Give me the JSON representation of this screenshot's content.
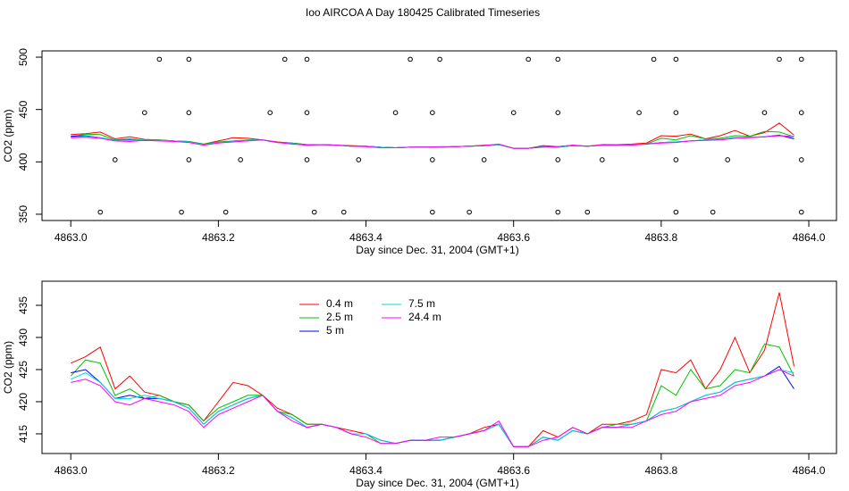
{
  "chart_data": [
    {
      "type": "scatter",
      "title": "Ioo AIRCOA A  Day 180425  Calibrated Timeseries",
      "x_label": "Day since Dec. 31, 2004 (GMT+1)",
      "y_label": "CO2 (ppm)",
      "x": [
        4863.12,
        4863.16,
        4863.29,
        4863.32,
        4863.46,
        4863.5,
        4863.62,
        4863.66,
        4863.79,
        4863.82,
        4863.96,
        4863.99,
        4863.1,
        4863.16,
        4863.27,
        4863.32,
        4863.44,
        4863.49,
        4863.6,
        4863.66,
        4863.77,
        4863.82,
        4863.94,
        4863.99,
        4863.06,
        4863.16,
        4863.23,
        4863.32,
        4863.39,
        4863.49,
        4863.56,
        4863.66,
        4863.72,
        4863.82,
        4863.89,
        4863.99,
        4863.04,
        4863.15,
        4863.21,
        4863.33,
        4863.37,
        4863.49,
        4863.54,
        4863.66,
        4863.7,
        4863.82,
        4863.87,
        4863.99
      ],
      "values": [
        498,
        498,
        498,
        498,
        498,
        498,
        498,
        498,
        498,
        498,
        498,
        498,
        447,
        447,
        447,
        447,
        447,
        447,
        447,
        447,
        447,
        447,
        447,
        447,
        402,
        402,
        402,
        402,
        402,
        402,
        402,
        402,
        402,
        402,
        402,
        402,
        352,
        352,
        352,
        352,
        352,
        352,
        352,
        352,
        352,
        352,
        352,
        352
      ],
      "color": "#000000",
      "xlim": [
        4862.961,
        4864.0375
      ],
      "ylim": [
        344,
        506
      ],
      "xticks": [
        {
          "value": 4863,
          "label": "4863.0"
        },
        4863.2,
        4863.4,
        4863.6,
        4863.8,
        {
          "value": 4864,
          "label": "4864.0"
        }
      ],
      "yticks": [
        350,
        400,
        450,
        500
      ]
    },
    {
      "type": "line",
      "x_label": "Day since Dec. 31, 2004 (GMT+1)",
      "y_label": "CO2 (ppm)",
      "x": [
        4863.0,
        4863.02,
        4863.04,
        4863.06,
        4863.08,
        4863.1,
        4863.12,
        4863.14,
        4863.16,
        4863.18,
        4863.2,
        4863.22,
        4863.24,
        4863.26,
        4863.28,
        4863.3,
        4863.32,
        4863.34,
        4863.36,
        4863.38,
        4863.4,
        4863.42,
        4863.44,
        4863.46,
        4863.48,
        4863.5,
        4863.52,
        4863.54,
        4863.56,
        4863.58,
        4863.6,
        4863.62,
        4863.64,
        4863.66,
        4863.68,
        4863.7,
        4863.72,
        4863.74,
        4863.76,
        4863.78,
        4863.8,
        4863.82,
        4863.84,
        4863.86,
        4863.88,
        4863.9,
        4863.92,
        4863.94,
        4863.96,
        4863.98
      ],
      "series": [
        {
          "name": "0.4 m",
          "color": "#ff0000",
          "values": [
            426,
            427,
            428.5,
            422,
            424,
            421.5,
            421,
            420,
            419.5,
            417,
            420,
            423,
            422.5,
            421,
            419,
            418,
            416.5,
            416.5,
            416,
            415.5,
            415,
            414,
            413.5,
            414,
            414,
            414,
            414.5,
            415,
            416,
            416.5,
            413,
            413,
            415.5,
            414.5,
            416,
            415,
            416.5,
            416.5,
            417,
            418,
            425,
            424.5,
            426.5,
            422,
            425,
            430,
            424.5,
            428,
            437,
            425.5
          ]
        },
        {
          "name": "2.5 m",
          "color": "#00c000",
          "values": [
            424,
            426.5,
            426,
            421,
            422,
            420.5,
            421,
            420,
            419.5,
            417,
            419,
            420,
            421,
            421,
            418.5,
            418,
            416.5,
            416.5,
            416,
            415,
            415,
            413.5,
            413.5,
            414,
            414,
            414,
            414.5,
            415,
            415.5,
            416.5,
            413,
            413,
            414.5,
            414,
            415.5,
            415,
            416,
            416.5,
            416.5,
            417,
            422.5,
            421,
            425,
            422,
            422.5,
            425,
            424.5,
            429,
            428.5,
            424
          ]
        },
        {
          "name": "5 m",
          "color": "#0000ff",
          "values": [
            424.5,
            425,
            423,
            420.5,
            421,
            420.5,
            420.5,
            420,
            419,
            416.5,
            418.5,
            419.5,
            420.5,
            421,
            418.5,
            417.5,
            416,
            416.5,
            416,
            415,
            415,
            414,
            413.5,
            414,
            414,
            414,
            414.5,
            415,
            415.5,
            416.5,
            413,
            413,
            414.5,
            414,
            415.5,
            415,
            416,
            416,
            416.5,
            417,
            418.5,
            419,
            420,
            421,
            421.5,
            423,
            423.5,
            424,
            425.5,
            422
          ]
        },
        {
          "name": "7.5 m",
          "color": "#00d8d8",
          "values": [
            423.5,
            424.5,
            423,
            420.5,
            420.5,
            421,
            420.5,
            420,
            419,
            416.5,
            418.5,
            419.5,
            420.5,
            421,
            418.5,
            417.5,
            416,
            416.5,
            416,
            415,
            415,
            414,
            413.5,
            414,
            414,
            414,
            414.5,
            415,
            415.5,
            416.5,
            413,
            413,
            414.5,
            414,
            415.5,
            415,
            416,
            416,
            416.5,
            417,
            418.5,
            419,
            420,
            421,
            421.5,
            423,
            423.5,
            424,
            425,
            424.5
          ]
        },
        {
          "name": "24.4 m",
          "color": "#ff00ff",
          "values": [
            423,
            423.5,
            422.5,
            420,
            419.5,
            420.5,
            420,
            419.5,
            418.5,
            416,
            418,
            419,
            420,
            421,
            418.5,
            417,
            416,
            416.5,
            416,
            415,
            414.5,
            413.5,
            413.5,
            414,
            414,
            414.5,
            414.5,
            415,
            415.5,
            417,
            413,
            413,
            414,
            414.5,
            416,
            415,
            416,
            416,
            416,
            417,
            418,
            418.5,
            420,
            420.5,
            421,
            422.5,
            423,
            424,
            425,
            424
          ]
        }
      ],
      "xlim": [
        4862.961,
        4864.0375
      ],
      "ylim": [
        411.94,
        438.75
      ],
      "xticks": [
        {
          "value": 4863,
          "label": "4863.0"
        },
        4863.2,
        4863.4,
        4863.6,
        4863.8,
        {
          "value": 4864,
          "label": "4864.0"
        }
      ],
      "yticks": [
        415,
        420,
        425,
        430,
        435
      ]
    }
  ]
}
